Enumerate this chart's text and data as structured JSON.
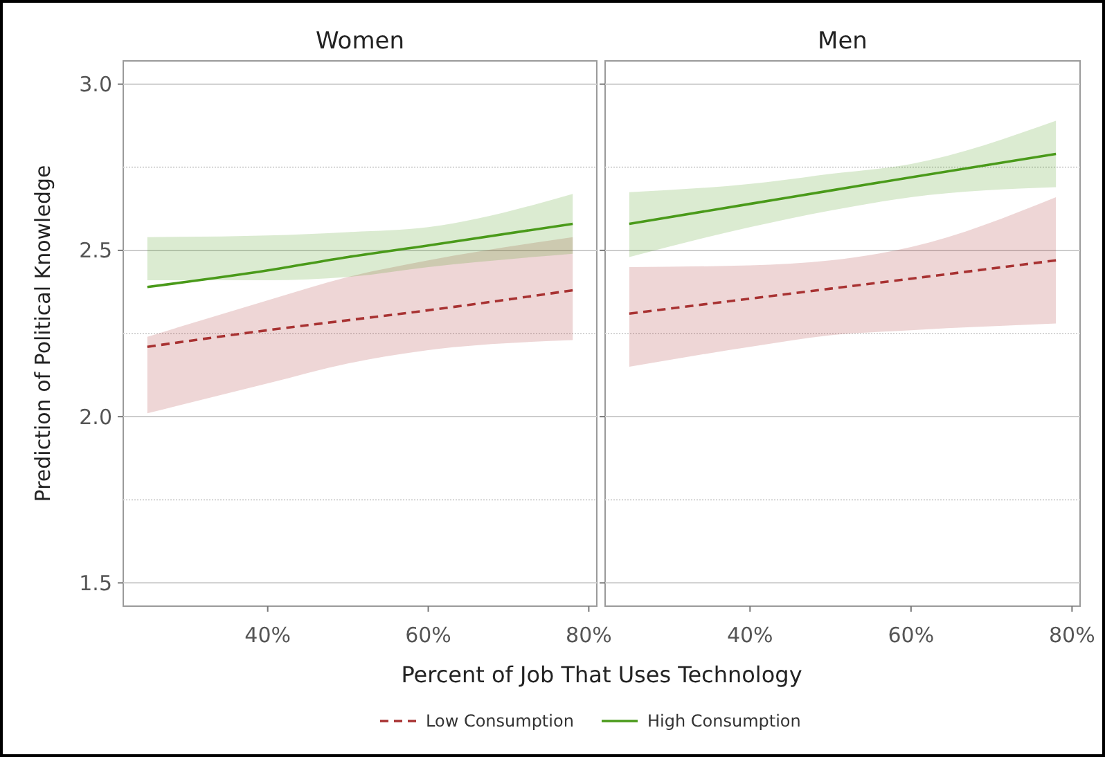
{
  "chart_data": [
    {
      "type": "line",
      "title": "Women",
      "xlabel": "Percent of Job That Uses Technology",
      "ylabel": "Prediction of Political Knowledge",
      "xlim": [
        22,
        81
      ],
      "xticks": [
        {
          "value": 40,
          "label": "40%"
        },
        {
          "value": 60,
          "label": "60%"
        },
        {
          "value": 80,
          "label": "80%"
        }
      ],
      "ylim": [
        1.43,
        3.07
      ],
      "yticks": [
        {
          "value": 1.5,
          "label": "1.5"
        },
        {
          "value": 1.75,
          "label": null
        },
        {
          "value": 2.0,
          "label": "2.0"
        },
        {
          "value": 2.25,
          "label": null
        },
        {
          "value": 2.5,
          "label": "2.5"
        },
        {
          "value": 2.75,
          "label": null
        },
        {
          "value": 3.0,
          "label": "3.0"
        }
      ],
      "grid": "y",
      "legend": "bottom",
      "marker": "none",
      "series": [
        {
          "name": "Low Consumption",
          "color": "#a83232",
          "line_style": "dashed",
          "x": [
            25,
            40,
            50,
            60,
            78
          ],
          "values": [
            2.21,
            2.26,
            2.29,
            2.32,
            2.38
          ],
          "lower": [
            2.01,
            2.1,
            2.16,
            2.2,
            2.23
          ],
          "upper": [
            2.24,
            2.35,
            2.42,
            2.47,
            2.54
          ]
        },
        {
          "name": "High Consumption",
          "color": "#4a9a1a",
          "line_style": "solid",
          "x": [
            25,
            40,
            50,
            60,
            78
          ],
          "values": [
            2.39,
            2.44,
            2.48,
            2.515,
            2.58
          ],
          "lower": [
            2.41,
            2.41,
            2.42,
            2.45,
            2.49
          ],
          "upper": [
            2.54,
            2.545,
            2.555,
            2.57,
            2.67
          ]
        }
      ]
    },
    {
      "type": "line",
      "title": "Men",
      "xlim": [
        22,
        81
      ],
      "xticks": [
        {
          "value": 40,
          "label": "40%"
        },
        {
          "value": 60,
          "label": "60%"
        },
        {
          "value": 80,
          "label": "80%"
        }
      ],
      "ylim": [
        1.43,
        3.07
      ],
      "yticks": [
        1.5,
        {
          "value": 1.75,
          "label": null
        },
        2.0,
        {
          "value": 2.25,
          "label": null
        },
        2.5,
        {
          "value": 2.75,
          "label": null
        },
        3.0
      ],
      "grid": "y",
      "tick_labels": "x",
      "marker": "none",
      "series": [
        {
          "color": "#a83232",
          "line_style": "dashed",
          "x": [
            25,
            40,
            50,
            60,
            78
          ],
          "values": [
            2.31,
            2.355,
            2.385,
            2.415,
            2.47
          ],
          "lower": [
            2.15,
            2.21,
            2.245,
            2.26,
            2.28
          ],
          "upper": [
            2.45,
            2.455,
            2.47,
            2.51,
            2.66
          ]
        },
        {
          "color": "#4a9a1a",
          "line_style": "solid",
          "x": [
            25,
            40,
            50,
            60,
            78
          ],
          "values": [
            2.58,
            2.64,
            2.68,
            2.72,
            2.79
          ],
          "lower": [
            2.48,
            2.57,
            2.62,
            2.66,
            2.69
          ],
          "upper": [
            2.675,
            2.7,
            2.73,
            2.76,
            2.89
          ]
        }
      ]
    }
  ]
}
